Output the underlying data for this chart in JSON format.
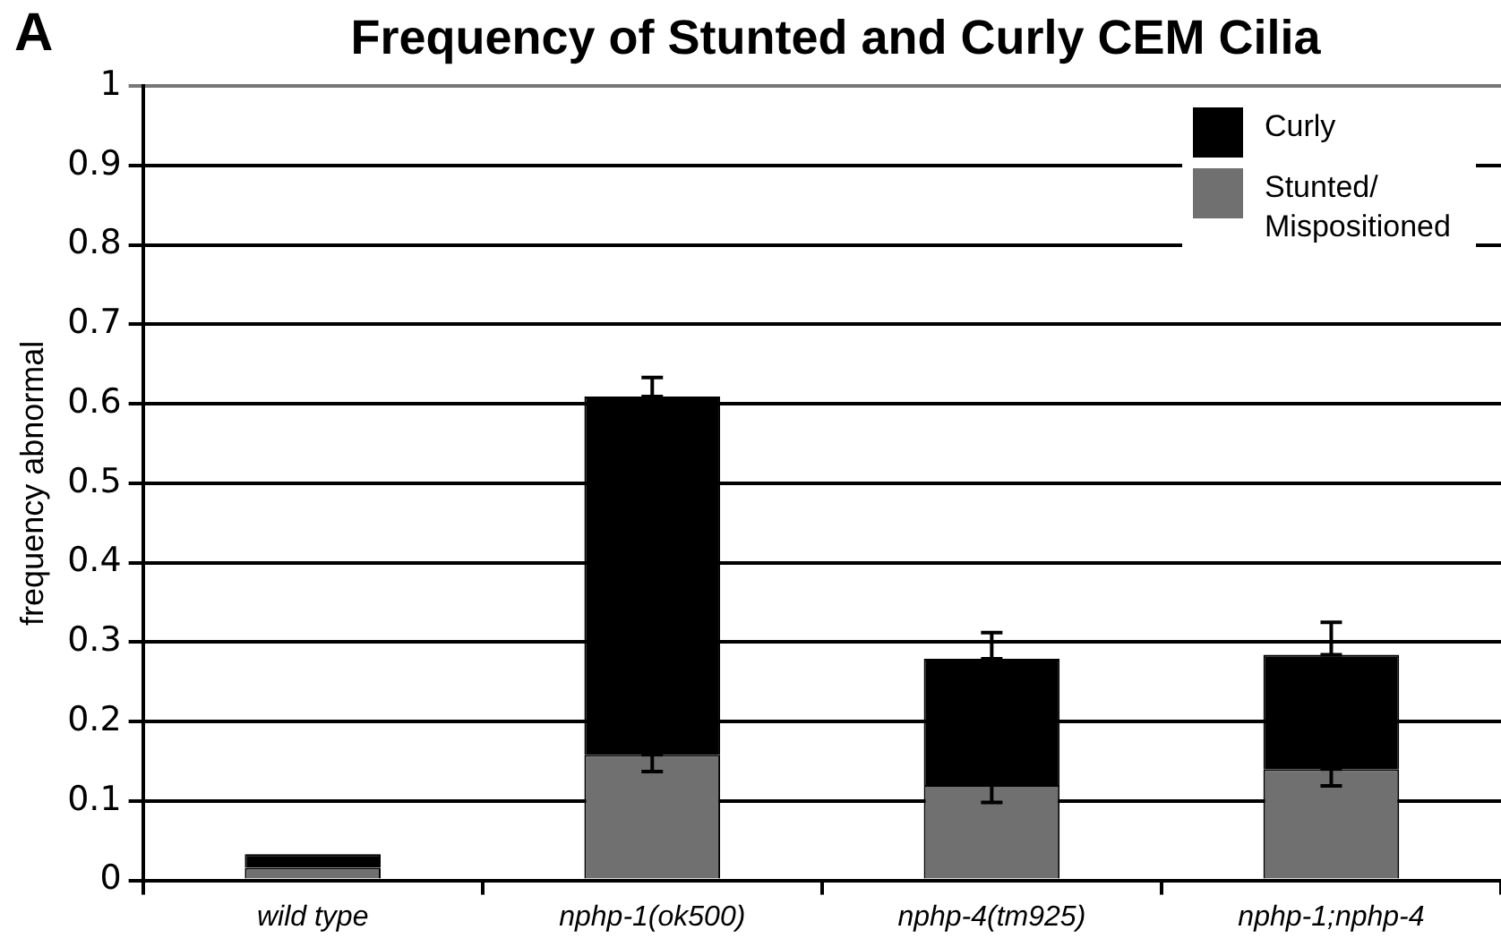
{
  "chart_data": {
    "type": "bar",
    "title": "Frequency of Stunted and Curly CEM Cilia",
    "ylabel": "frequency abnormal",
    "annotations": [
      "A"
    ],
    "categories": [
      "wild type",
      "nphp-1(ok500)",
      "nphp-4(tm925)",
      "nphp-1;nphp-4"
    ],
    "stacked": true,
    "series": [
      {
        "name": "Stunted/ Mispositioned",
        "color": "#707070",
        "values": [
          0.016,
          0.158,
          0.12,
          0.14
        ],
        "errors": [
          null,
          [
            0.137,
            0.158
          ],
          [
            0.098,
            0.12
          ],
          [
            0.119,
            0.14
          ]
        ]
      },
      {
        "name": "Curly",
        "color": "#000000",
        "values": [
          0.017,
          0.451,
          0.159,
          0.144
        ],
        "errors": [
          null,
          [
            0.609,
            0.633
          ],
          [
            0.279,
            0.312
          ],
          [
            0.284,
            0.325
          ]
        ]
      }
    ],
    "ylim": [
      0,
      1
    ],
    "yticks": [
      0,
      0.1,
      0.2,
      0.3,
      0.4,
      0.5,
      0.6,
      0.7,
      0.8,
      0.9,
      1
    ],
    "grid": "y",
    "legend": "top right"
  }
}
